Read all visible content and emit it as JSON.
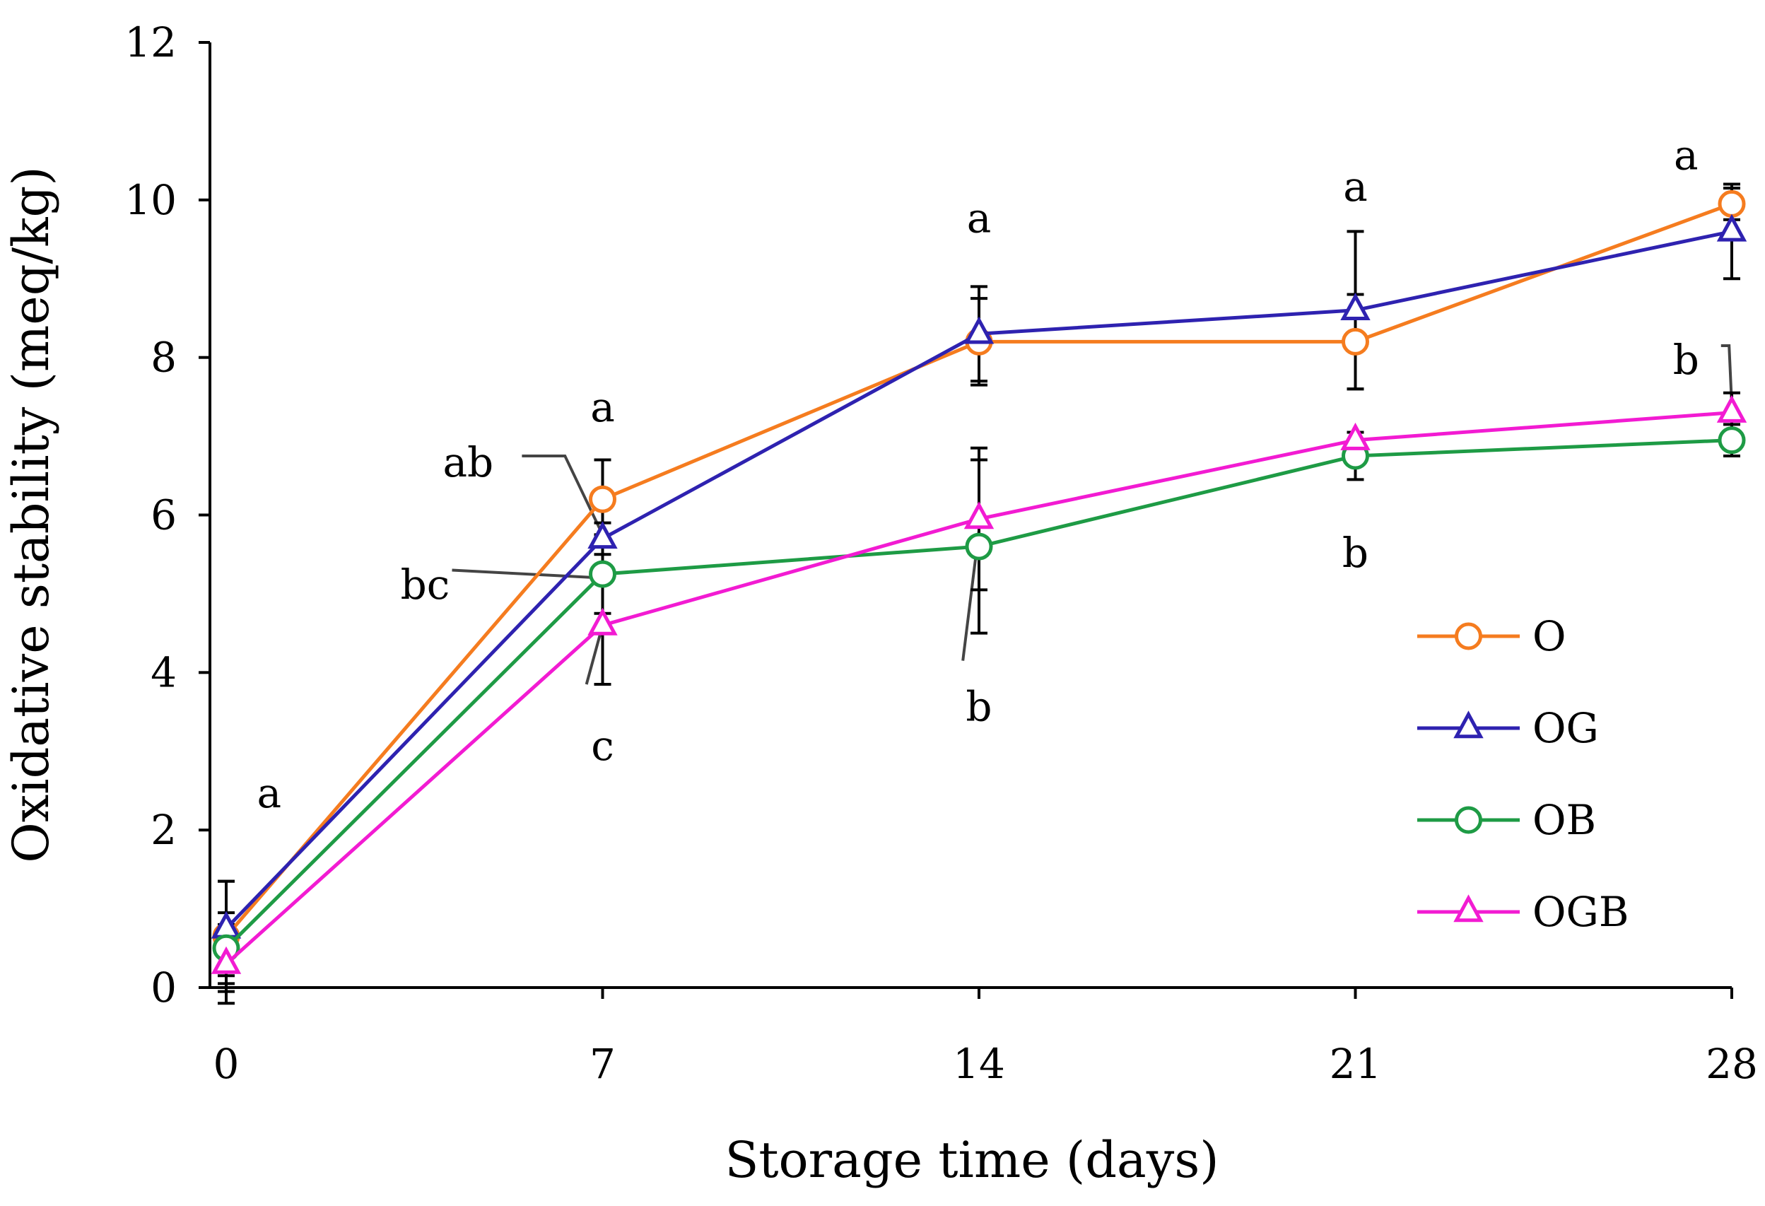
{
  "chart_data": {
    "type": "line",
    "xlabel": "Storage time (days)",
    "ylabel": "Oxidative stability (meq/kg)",
    "x": [
      0,
      7,
      14,
      21,
      28
    ],
    "xticks": [
      "0",
      "7",
      "14",
      "21",
      "28"
    ],
    "xlim": [
      0,
      28
    ],
    "yticks": [
      "0",
      "2",
      "4",
      "6",
      "8",
      "10",
      "12"
    ],
    "ylim": [
      0,
      12
    ],
    "grid": false,
    "legend_position": "bottom-right",
    "series": [
      {
        "name": "O",
        "marker": "circle",
        "color": "#F57C1F",
        "values": [
          0.65,
          6.2,
          8.2,
          8.2,
          9.95
        ],
        "errors": [
          0.7,
          0.5,
          0.55,
          0.6,
          0.2
        ]
      },
      {
        "name": "OG",
        "marker": "triangle",
        "color": "#2E22B0",
        "values": [
          0.75,
          5.7,
          8.3,
          8.6,
          9.6
        ],
        "errors": [
          0.6,
          0.2,
          0.6,
          1.0,
          0.6
        ]
      },
      {
        "name": "OB",
        "marker": "circle",
        "color": "#1E9B45",
        "values": [
          0.5,
          5.25,
          5.6,
          6.75,
          6.95
        ],
        "errors": [
          0.45,
          0.5,
          1.1,
          0.3,
          0.2
        ]
      },
      {
        "name": "OGB",
        "marker": "triangle",
        "color": "#F21BD2",
        "values": [
          0.3,
          4.6,
          5.95,
          6.95,
          7.3
        ],
        "errors": [
          0.5,
          0.75,
          0.9,
          0.1,
          0.25
        ]
      }
    ],
    "annotations": [
      {
        "text": "a",
        "x": 0.8,
        "y": 2.45
      },
      {
        "text": "a",
        "x": 7,
        "y": 7.35
      },
      {
        "text": "ab",
        "x": 4.5,
        "y": 6.65
      },
      {
        "text": "bc",
        "x": 3.7,
        "y": 5.1
      },
      {
        "text": "c",
        "x": 7,
        "y": 3.05
      },
      {
        "text": "a",
        "x": 14,
        "y": 9.75
      },
      {
        "text": "b",
        "x": 14,
        "y": 3.55
      },
      {
        "text": "a",
        "x": 21,
        "y": 10.15
      },
      {
        "text": "b",
        "x": 21,
        "y": 5.5
      },
      {
        "text": "a",
        "x": 27.15,
        "y": 10.55
      },
      {
        "text": "b",
        "x": 27.15,
        "y": 7.95
      }
    ],
    "callouts": [
      {
        "from": [
          5.5,
          6.75
        ],
        "via": [
          6.3,
          6.75
        ],
        "to": [
          7,
          5.75
        ]
      },
      {
        "from": [
          4.2,
          5.3
        ],
        "to": [
          7,
          5.2
        ]
      },
      {
        "from": [
          6.7,
          3.85
        ],
        "to": [
          7,
          4.6
        ]
      },
      {
        "from": [
          13.7,
          4.15
        ],
        "to": [
          14,
          5.8
        ]
      },
      {
        "from": [
          27.8,
          8.15
        ],
        "via": [
          27.95,
          8.15
        ],
        "to": [
          28,
          7.4
        ]
      }
    ]
  }
}
